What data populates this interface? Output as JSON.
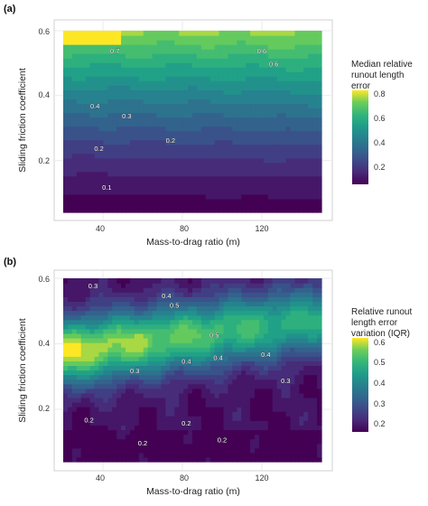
{
  "chart_data": [
    {
      "type": "heatmap",
      "panel_label": "(a)",
      "xlabel": "Mass-to-drag ratio (m)",
      "ylabel": "Sliding friction coefficient",
      "x_ticks": [
        40,
        80,
        120
      ],
      "y_ticks": [
        0.2,
        0.4,
        0.6
      ],
      "xlim": [
        20,
        150
      ],
      "ylim": [
        0.04,
        0.6
      ],
      "grid": true,
      "legend": {
        "title": [
          "Median relative",
          "runout length",
          "error"
        ],
        "ticks": [
          0.8,
          0.6,
          0.4,
          0.2
        ],
        "range": [
          0.1,
          0.84
        ],
        "placement": "right",
        "colormap": "viridis"
      },
      "contour_labels": [
        {
          "text": "0.7",
          "x": 46,
          "y": 0.53
        },
        {
          "text": "0.6",
          "x": 120,
          "y": 0.53
        },
        {
          "text": "0.6",
          "x": 126,
          "y": 0.49
        },
        {
          "text": "0.4",
          "x": 36,
          "y": 0.36
        },
        {
          "text": "0.3",
          "x": 52,
          "y": 0.33
        },
        {
          "text": "0.2",
          "x": 38,
          "y": 0.23
        },
        {
          "text": "0.2",
          "x": 74,
          "y": 0.255
        },
        {
          "text": "0.1",
          "x": 42,
          "y": 0.11
        }
      ],
      "surface": {
        "type": "gradient",
        "x_range": [
          20,
          150
        ],
        "y_range": [
          0.04,
          0.6
        ]
      }
    },
    {
      "type": "heatmap",
      "panel_label": "(b)",
      "xlabel": "Mass-to-drag ratio (m)",
      "ylabel": "Sliding friction coefficient",
      "x_ticks": [
        40,
        80,
        120
      ],
      "y_ticks": [
        0.2,
        0.4,
        0.6
      ],
      "xlim": [
        20,
        150
      ],
      "ylim": [
        0.04,
        0.6
      ],
      "grid": true,
      "legend": {
        "title": [
          "Relative runout",
          "length error",
          "variation (IQR)"
        ],
        "ticks": [
          0.6,
          0.5,
          0.4,
          0.3,
          0.2
        ],
        "range": [
          0.17,
          0.62
        ],
        "placement": "right",
        "colormap": "viridis"
      },
      "contour_labels": [
        {
          "text": "0.3",
          "x": 35,
          "y": 0.57
        },
        {
          "text": "0.4",
          "x": 72,
          "y": 0.54
        },
        {
          "text": "0.5",
          "x": 76,
          "y": 0.51
        },
        {
          "text": "0.5",
          "x": 96,
          "y": 0.42
        },
        {
          "text": "0.4",
          "x": 98,
          "y": 0.35
        },
        {
          "text": "0.4",
          "x": 82,
          "y": 0.34
        },
        {
          "text": "0.4",
          "x": 122,
          "y": 0.36
        },
        {
          "text": "0.3",
          "x": 56,
          "y": 0.31
        },
        {
          "text": "0.3",
          "x": 132,
          "y": 0.28
        },
        {
          "text": "0.2",
          "x": 33,
          "y": 0.16
        },
        {
          "text": "0.2",
          "x": 82,
          "y": 0.15
        },
        {
          "text": "0.2",
          "x": 60,
          "y": 0.09
        },
        {
          "text": "0.2",
          "x": 100,
          "y": 0.1
        }
      ],
      "surface": {
        "type": "ridge",
        "x_range": [
          20,
          150
        ],
        "y_range": [
          0.04,
          0.6
        ]
      }
    }
  ]
}
